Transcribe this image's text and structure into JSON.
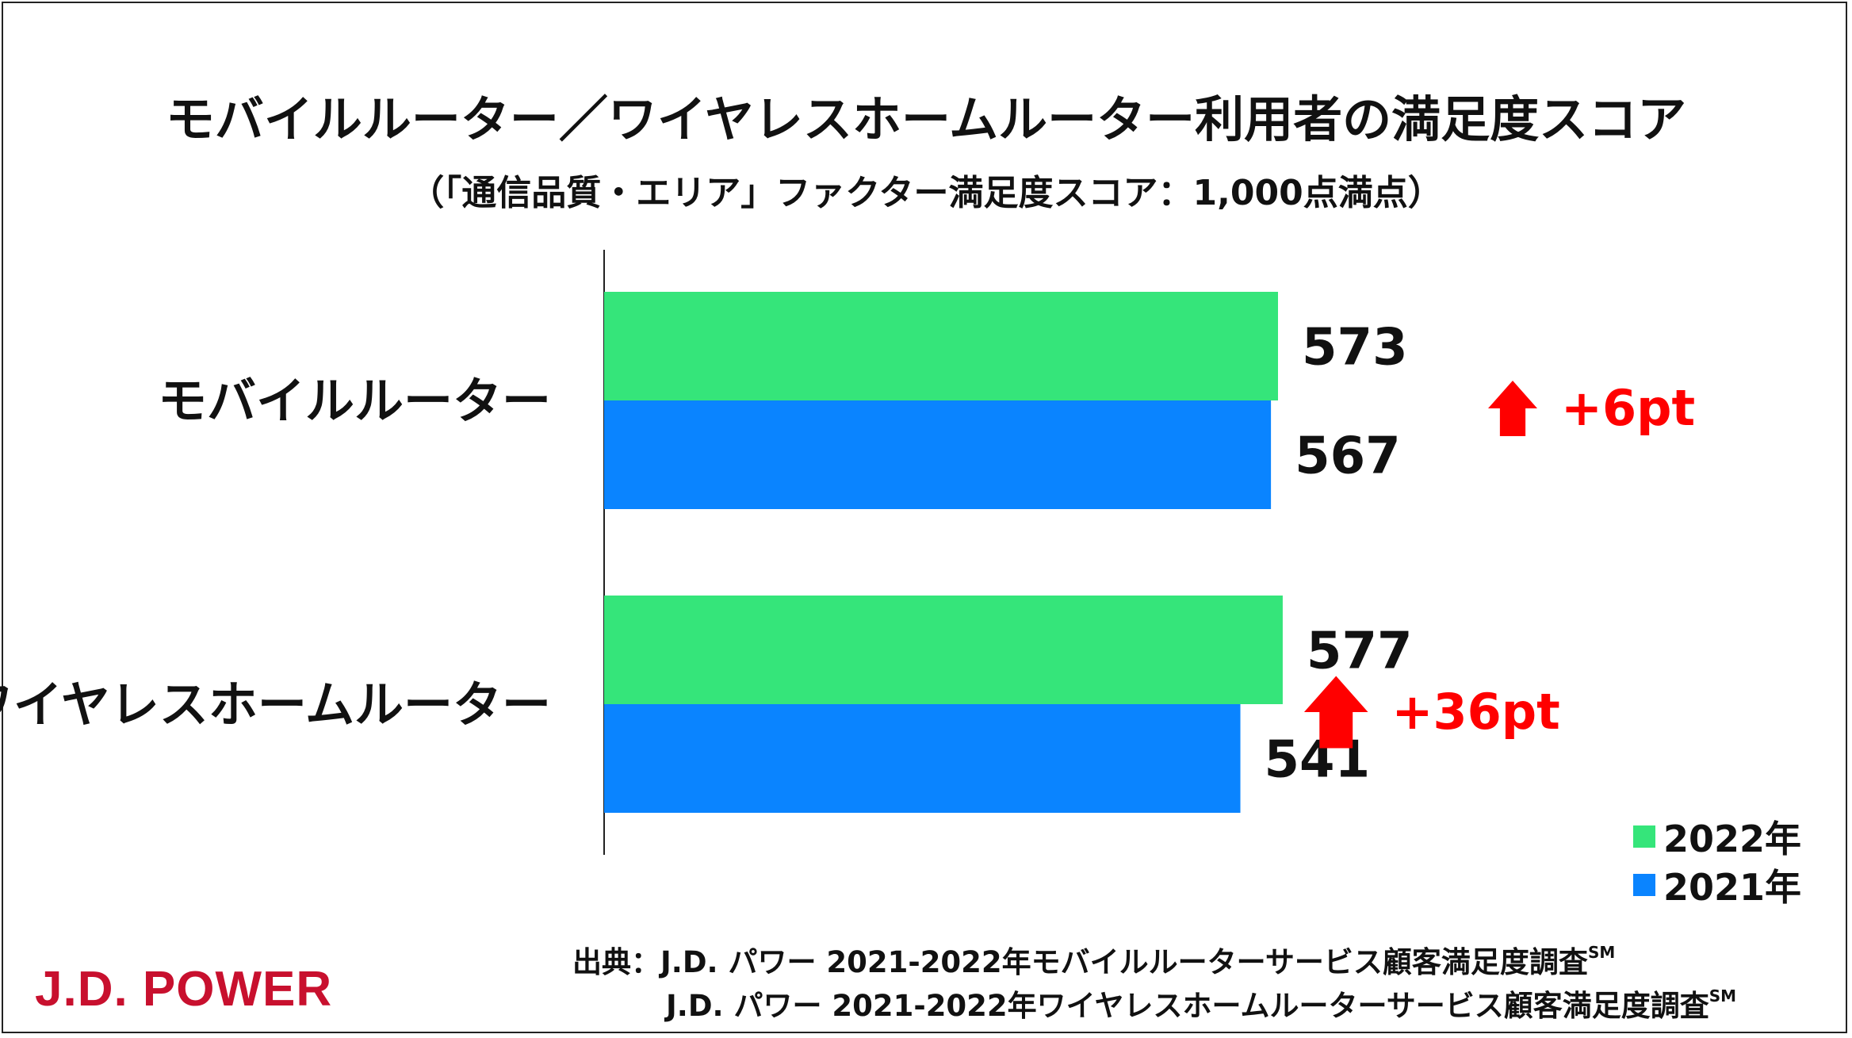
{
  "chart_data": {
    "type": "bar",
    "orientation": "horizontal",
    "title": "モバイルルーター／ワイヤレスホームルーター利用者の満足度スコア",
    "subtitle": "（「通信品質・エリア」ファクター満足度スコア：1,000点満点）",
    "categories": [
      "モバイルルーター",
      "ワイヤレスホームルーター"
    ],
    "series": [
      {
        "name": "2022年",
        "values": [
          573,
          577
        ],
        "color": "#35e57a"
      },
      {
        "name": "2021年",
        "values": [
          567,
          541
        ],
        "color": "#0a84ff"
      }
    ],
    "differences": [
      "+6pt",
      "+36pt"
    ],
    "legend_position": "bottom-right",
    "grid": false,
    "axis_x_visible": false
  },
  "colors": {
    "accent_red": "#ff0000",
    "logo_red": "#c8102e"
  },
  "source": {
    "lines": [
      "出典：J.D. パワー 2021-2022年モバイルルーターサービス顧客満足度調査",
      "J.D. パワー 2021-2022年ワイヤレスホームルーターサービス顧客満足度調査"
    ],
    "mark": "SM"
  },
  "logo": {
    "text": "J.D. POWER"
  }
}
